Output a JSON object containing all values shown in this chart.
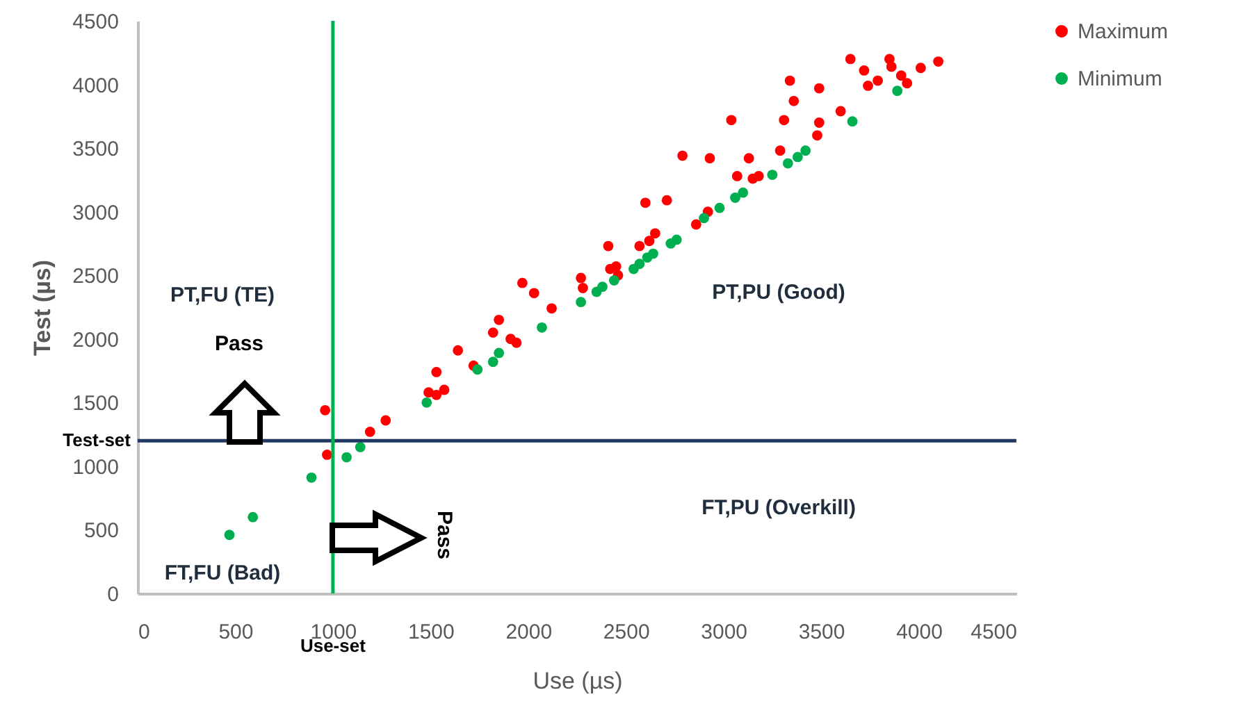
{
  "chart_data": {
    "type": "scatter",
    "xlabel": "Use (µs)",
    "ylabel": "Test (µs)",
    "xlim": [
      0,
      4500
    ],
    "xticks": [
      0,
      500,
      1000,
      1500,
      2000,
      2500,
      3000,
      3500,
      4000,
      4500
    ],
    "ylim": [
      0,
      4500
    ],
    "yticks": [
      0,
      500,
      1000,
      1500,
      2000,
      2500,
      3000,
      3500,
      4000,
      4500
    ],
    "grid": false,
    "legend": "right",
    "marker": "circle",
    "series": [
      {
        "name": "Maximum",
        "color": "#ff0000",
        "x": [
          960,
          970,
          1190,
          1270,
          1490,
          1530,
          1570,
          1530,
          1640,
          1720,
          1820,
          1850,
          1910,
          1940,
          1970,
          2030,
          2120,
          2270,
          2280,
          2410,
          2420,
          2450,
          2460,
          2570,
          2620,
          2650,
          2860,
          2920,
          2600,
          2710,
          2790,
          2930,
          3040,
          3070,
          3130,
          3150,
          3180,
          3290,
          3310,
          3340,
          3360,
          3480,
          3490,
          3490,
          3600,
          3650,
          3720,
          3740,
          3790,
          3850,
          3860,
          3910,
          3940,
          4010,
          4100
        ],
        "values": [
          1440,
          1090,
          1270,
          1360,
          1580,
          1560,
          1600,
          1740,
          1910,
          1790,
          2050,
          2150,
          2000,
          1970,
          2440,
          2360,
          2240,
          2480,
          2400,
          2730,
          2550,
          2570,
          2500,
          2730,
          2770,
          2830,
          2900,
          3000,
          3070,
          3090,
          3440,
          3420,
          3720,
          3280,
          3420,
          3260,
          3280,
          3480,
          3720,
          4030,
          3870,
          3600,
          3700,
          3970,
          3790,
          4200,
          4110,
          3990,
          4030,
          4200,
          4140,
          4070,
          4010,
          4130,
          4180
        ]
      },
      {
        "name": "Minimum",
        "color": "#00b050",
        "x": [
          470,
          590,
          890,
          1070,
          1140,
          1480,
          1740,
          1820,
          1850,
          2070,
          2270,
          2350,
          2380,
          2440,
          2540,
          2570,
          2610,
          2640,
          2730,
          2760,
          2900,
          2980,
          3060,
          3100,
          3250,
          3330,
          3380,
          3420,
          3660,
          3890
        ],
        "values": [
          460,
          600,
          910,
          1070,
          1150,
          1500,
          1760,
          1820,
          1890,
          2090,
          2290,
          2370,
          2410,
          2460,
          2550,
          2590,
          2640,
          2670,
          2750,
          2780,
          2950,
          3030,
          3110,
          3150,
          3290,
          3380,
          3430,
          3480,
          3710,
          3950
        ]
      }
    ],
    "ref_lines": [
      {
        "axis": "y",
        "value": 1200,
        "label": "Test-set",
        "color": "#203864"
      },
      {
        "axis": "x",
        "value": 1000,
        "label": "Use-set",
        "color": "#00b050"
      }
    ],
    "annotations": [
      "PT,FU (TE)",
      "Pass",
      "FT,FU (Bad)",
      "Pass",
      "PT,PU (Good)",
      "FT,PU (Overkill)"
    ]
  }
}
